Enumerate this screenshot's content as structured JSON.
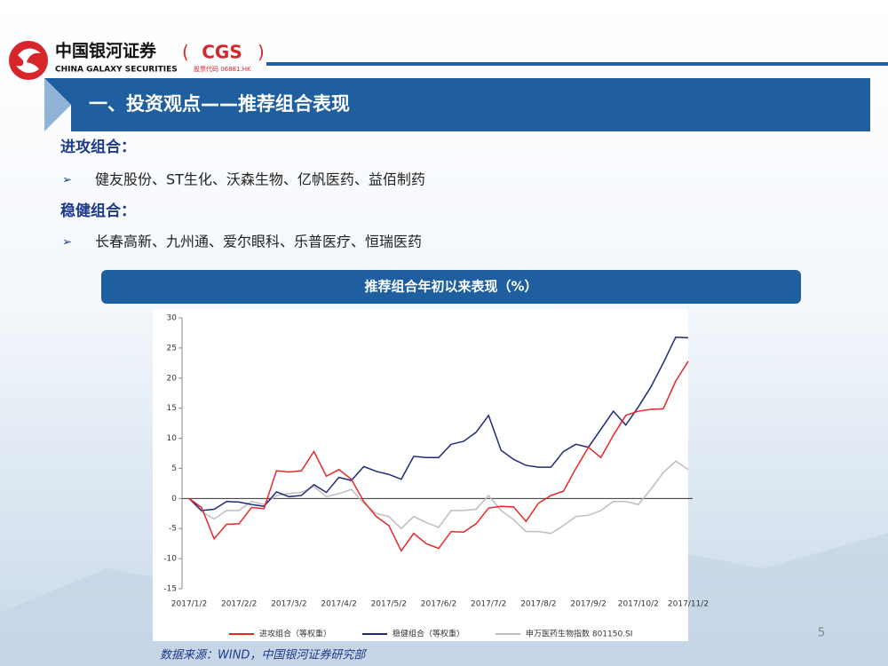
{
  "logo": {
    "name": "中国银河证券",
    "code": "CGS",
    "english": "CHINA GALAXY SECURITIES",
    "stock": "股票代码 06881.HK"
  },
  "header": {
    "title": "一、投资观点——推荐组合表现"
  },
  "sections": [
    {
      "heading": "进攻组合：",
      "items": [
        "健友股份、ST生化、沃森生物、亿帆医药、益佰制药"
      ]
    },
    {
      "heading": "稳健组合：",
      "items": [
        "长春高新、九州通、爱尔眼科、乐普医疗、恒瑞医药"
      ]
    }
  ],
  "chart_data": {
    "type": "line",
    "title": "推荐组合年初以来表现（%）",
    "categories": [
      "2017/1/2",
      null,
      null,
      null,
      "2017/2/2",
      null,
      null,
      null,
      "2017/3/2",
      null,
      null,
      null,
      "2017/4/2",
      null,
      null,
      null,
      "2017/5/2",
      null,
      null,
      null,
      "2017/6/2",
      null,
      null,
      null,
      "2017/7/2",
      null,
      null,
      null,
      "2017/8/2",
      null,
      null,
      null,
      "2017/9/2",
      null,
      null,
      null,
      "2017/10/2",
      null,
      null,
      null,
      "2017/11/2"
    ],
    "series": [
      {
        "name": "进攻组合（等权重）",
        "color": "#e8262a",
        "values": [
          0,
          -1.5,
          -6.7,
          -4.3,
          -4.2,
          -1.5,
          -1.7,
          4.6,
          4.4,
          4.6,
          7.8,
          3.7,
          4.8,
          3.2,
          -0.5,
          -3.0,
          -4.5,
          -8.7,
          -5.8,
          -7.5,
          -8.3,
          -5.5,
          -5.6,
          -4.2,
          -1.6,
          -1.3,
          -1.4,
          -3.8,
          -0.8,
          0.5,
          1.2,
          5,
          8.5,
          6.8,
          10.5,
          13.8,
          14.5,
          14.8,
          14.9,
          19.5,
          22.8
        ]
      },
      {
        "name": "稳健组合（等权重）",
        "color": "#1f2a7a",
        "values": [
          0,
          -2,
          -1.8,
          -0.5,
          -0.6,
          -1.0,
          -1.3,
          1.1,
          0.3,
          0.5,
          2.3,
          1.0,
          3.5,
          3.0,
          5.3,
          4.5,
          4.0,
          3.2,
          7.0,
          6.8,
          6.8,
          9.0,
          9.5,
          11.0,
          13.8,
          8.0,
          6.5,
          5.5,
          5.2,
          5.2,
          7.8,
          9.0,
          8.5,
          11.5,
          14.5,
          12.2,
          15.2,
          18.5,
          22.5,
          26.8,
          26.7
        ]
      },
      {
        "name": "申万医药生物指数 801150.SI",
        "color": "#bdbdbd",
        "values": [
          0,
          -2.2,
          -3.4,
          -2.0,
          -2.0,
          -0.5,
          -1.0,
          0.5,
          0.8,
          1.0,
          2.0,
          0.3,
          0.8,
          1.5,
          -0.8,
          -2.5,
          -3.0,
          -5.0,
          -3.0,
          -4.0,
          -4.8,
          -2.0,
          -2.0,
          -1.8,
          0.5,
          -2.0,
          -3.5,
          -5.5,
          -5.5,
          -5.8,
          -4.5,
          -3.0,
          -2.8,
          -2.0,
          -0.5,
          -0.5,
          -1.0,
          1.5,
          4.3,
          6.2,
          4.8
        ]
      }
    ],
    "ylim": [
      -15,
      30
    ],
    "yticks": [
      -15,
      -10,
      -5,
      0,
      5,
      10,
      15,
      20,
      25,
      30
    ]
  },
  "source": "数据来源：WIND，中国银河证券研究部",
  "page": "5"
}
